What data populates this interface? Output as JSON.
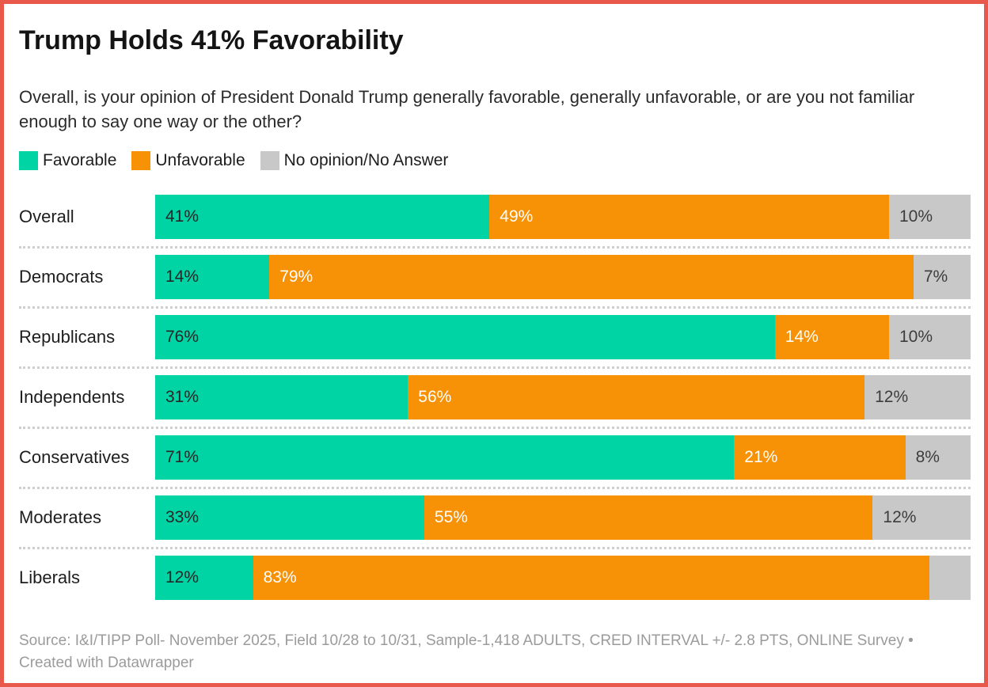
{
  "title": "Trump Holds 41% Favorability",
  "subtitle": "Overall, is your opinion of President Donald Trump generally favorable, generally unfavorable, or are you not familiar enough to say one way or the other?",
  "legend": {
    "items": [
      {
        "label": "Favorable",
        "color": "#00d3a4"
      },
      {
        "label": "Unfavorable",
        "color": "#f79106"
      },
      {
        "label": "No opinion/No Answer",
        "color": "#c8c8c8"
      }
    ]
  },
  "chart_data": {
    "type": "bar",
    "variant": "stacked-horizontal",
    "unit": "%",
    "xlim": [
      0,
      100
    ],
    "grid": false,
    "legend_position": "top",
    "categories": [
      "Overall",
      "Democrats",
      "Republicans",
      "Independents",
      "Conservatives",
      "Moderates",
      "Liberals"
    ],
    "series": [
      {
        "name": "Favorable",
        "color": "#00d3a4",
        "label_color": "#262626",
        "values": [
          41,
          14,
          76,
          31,
          71,
          33,
          12
        ],
        "labels": [
          "41%",
          "14%",
          "76%",
          "31%",
          "71%",
          "33%",
          "12%"
        ]
      },
      {
        "name": "Unfavorable",
        "color": "#f79106",
        "label_color": "#ffffff",
        "values": [
          49,
          79,
          14,
          56,
          21,
          55,
          83
        ],
        "labels": [
          "49%",
          "79%",
          "14%",
          "56%",
          "21%",
          "55%",
          "83%"
        ]
      },
      {
        "name": "No opinion/No Answer",
        "color": "#c8c8c8",
        "label_color": "#3d3d3d",
        "values": [
          10,
          7,
          10,
          12,
          8,
          12,
          5
        ],
        "labels": [
          "10%",
          "7%",
          "10%",
          "12%",
          "8%",
          "12%",
          ""
        ]
      }
    ]
  },
  "source": "Source: I&I/TIPP Poll- November 2025, Field 10/28 to 10/31, Sample-1,418 ADULTS, CRED INTERVAL +/- 2.8 PTS, ONLINE Survey • Created with Datawrapper",
  "colors": {
    "frame_border": "#e8594b",
    "separator": "#cfcfcf"
  }
}
